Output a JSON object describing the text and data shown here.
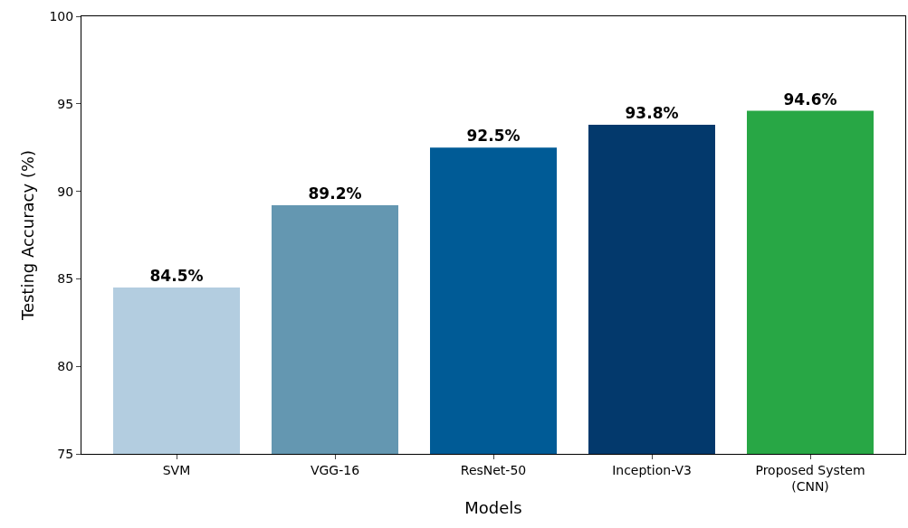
{
  "chart_data": {
    "type": "bar",
    "xlabel": "Models",
    "ylabel": "Testing Accuracy (%)",
    "categories": [
      "SVM",
      "VGG-16",
      "ResNet-50",
      "Inception-V3",
      "Proposed System\n(CNN)"
    ],
    "values": [
      84.5,
      89.2,
      92.5,
      93.8,
      94.6
    ],
    "colors": [
      "#b3cde0",
      "#6497b1",
      "#005b96",
      "#03396c",
      "#28a745"
    ],
    "value_labels": [
      "84.5%",
      "89.2%",
      "92.5%",
      "93.8%",
      "94.6%"
    ],
    "ylim": [
      75,
      100
    ],
    "yticks": [
      75,
      80,
      85,
      90,
      95,
      100
    ],
    "grid": false
  }
}
